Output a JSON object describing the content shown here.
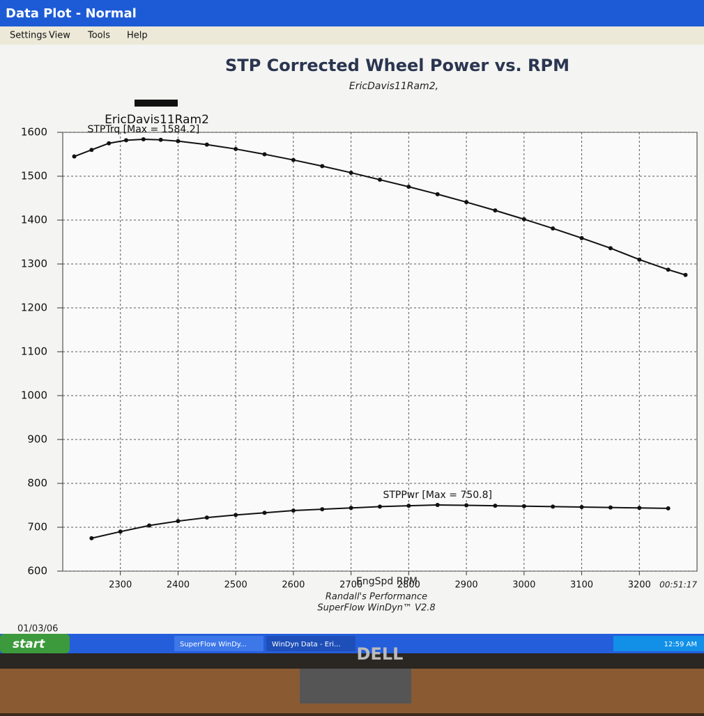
{
  "window": {
    "title": "Data Plot - Normal",
    "menu": [
      "Settings",
      "View",
      "Tools",
      "Help"
    ]
  },
  "chart_data": {
    "type": "line",
    "title": "STP Corrected Wheel Power vs. RPM",
    "subtitle": "EricDavis11Ram2,",
    "legend_label": "EricDavis11Ram2",
    "x_label": "EngSpd  RPM",
    "xlim": [
      2200,
      3300
    ],
    "xticks": [
      2300,
      2400,
      2500,
      2600,
      2700,
      2800,
      2900,
      3000,
      3100,
      3200
    ],
    "ylim": [
      600,
      1600
    ],
    "yticks": [
      600,
      700,
      800,
      900,
      1000,
      1100,
      1200,
      1300,
      1400,
      1500,
      1600
    ],
    "grid": true,
    "series": [
      {
        "name": "STPTrq [Max = 1584.2]",
        "color": "#111111",
        "x": [
          2220,
          2250,
          2280,
          2310,
          2340,
          2370,
          2400,
          2450,
          2500,
          2550,
          2600,
          2650,
          2700,
          2750,
          2800,
          2850,
          2900,
          2950,
          3000,
          3050,
          3100,
          3150,
          3200,
          3250,
          3280
        ],
        "values": [
          1545,
          1560,
          1575,
          1582,
          1584.2,
          1583,
          1580,
          1572,
          1562,
          1550,
          1537,
          1523,
          1508,
          1492,
          1476,
          1459,
          1441,
          1422,
          1402,
          1381,
          1359,
          1336,
          1310,
          1287,
          1275
        ]
      },
      {
        "name": "STPPwr [Max = 750.8]",
        "color": "#111111",
        "x": [
          2250,
          2300,
          2350,
          2400,
          2450,
          2500,
          2550,
          2600,
          2650,
          2700,
          2750,
          2800,
          2850,
          2900,
          2950,
          3000,
          3050,
          3100,
          3150,
          3200,
          3250
        ],
        "values": [
          675,
          690,
          704,
          714,
          722,
          728,
          733,
          738,
          741,
          744,
          747,
          749,
          750.8,
          750,
          749,
          748,
          747,
          746,
          745,
          744,
          743
        ]
      }
    ],
    "footer": [
      "Randall's Performance",
      "SuperFlow WinDyn™ V2.8"
    ],
    "time": "00:51:17",
    "date": "01/03/06"
  },
  "taskbar": {
    "start": "start",
    "tasks": [
      "SuperFlow WinDy...",
      "WinDyn Data - Eri..."
    ],
    "clock": "12:59 AM"
  },
  "monitor": {
    "brand": "DELL"
  }
}
